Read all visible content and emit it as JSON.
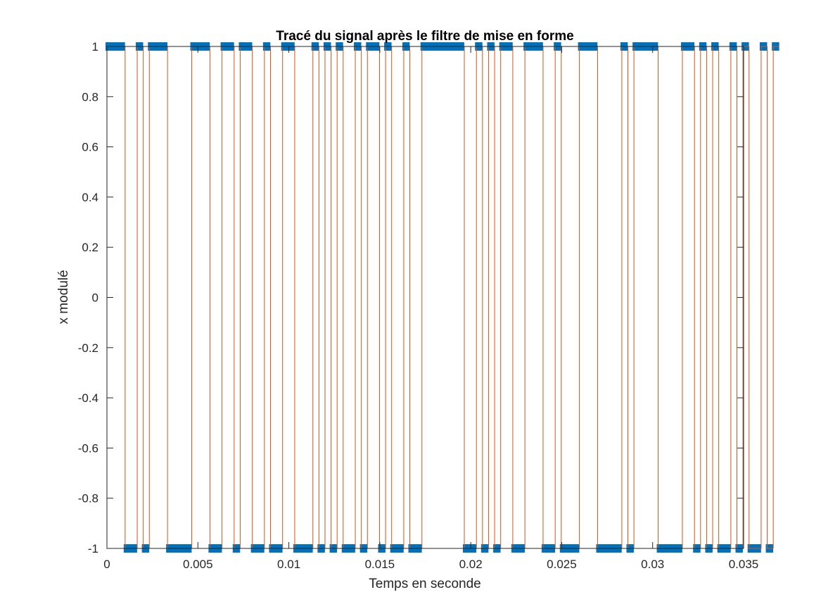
{
  "chart_data": {
    "type": "line",
    "title": "Tracé du signal après le filtre de mise en forme",
    "xlabel": "Temps en seconde",
    "ylabel": "x modulé",
    "xlim": [
      0,
      0.035
    ],
    "ylim": [
      -1,
      1
    ],
    "xticks": [
      0,
      0.005,
      0.01,
      0.015,
      0.02,
      0.025,
      0.03,
      0.035
    ],
    "xtick_labels": [
      "0",
      "0.005",
      "0.01",
      "0.015",
      "0.02",
      "0.025",
      "0.03",
      "0.035"
    ],
    "yticks": [
      -1,
      -0.8,
      -0.6,
      -0.4,
      -0.2,
      0,
      0.2,
      0.4,
      0.6,
      0.8,
      1
    ],
    "ytick_labels": [
      "-1",
      "-0.8",
      "-0.6",
      "-0.4",
      "-0.2",
      "0",
      "0.2",
      "0.4",
      "0.6",
      "0.8",
      "1"
    ],
    "grid": false,
    "symbol_duration": 0.000333,
    "bits": [
      1,
      1,
      1,
      0,
      0,
      1,
      0,
      1,
      1,
      1,
      0,
      0,
      0,
      0,
      1,
      1,
      1,
      0,
      0,
      1,
      1,
      0,
      1,
      1,
      0,
      0,
      1,
      0,
      0,
      1,
      1,
      0,
      0,
      0,
      1,
      0,
      1,
      0,
      1,
      0,
      0,
      1,
      0,
      1,
      1,
      0,
      1,
      0,
      0,
      1,
      0,
      0,
      1,
      1,
      1,
      1,
      1,
      1,
      1,
      0,
      0,
      1,
      0,
      1,
      0,
      1,
      1,
      0,
      0,
      1,
      1,
      1,
      0,
      0,
      1,
      0,
      0,
      0,
      1,
      1,
      1,
      0,
      0,
      0,
      0,
      1,
      0,
      1,
      1,
      1,
      1,
      0,
      0,
      0,
      0,
      1,
      1,
      0,
      1,
      0,
      1,
      0,
      0,
      1,
      0,
      1,
      0,
      0,
      1,
      0,
      1
    ],
    "series": [
      {
        "style": "markers",
        "color": "#0072BD"
      },
      {
        "style": "step-line",
        "color": "#D95319"
      }
    ]
  }
}
